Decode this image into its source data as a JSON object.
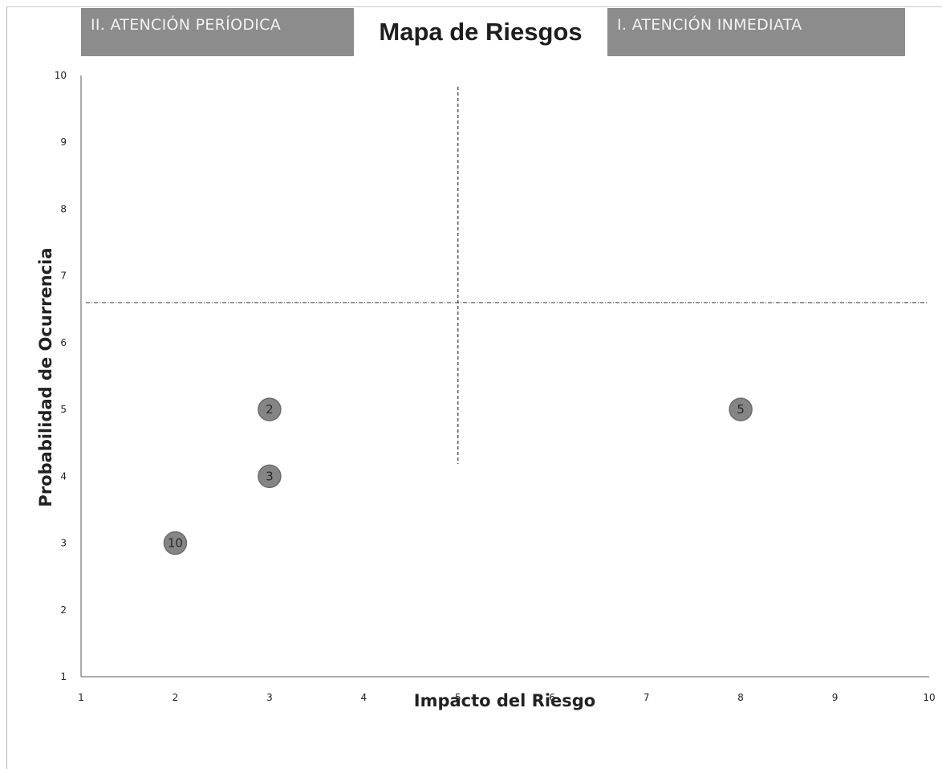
{
  "chart_data": {
    "type": "scatter",
    "title": "Mapa de Riesgos",
    "xlabel": "Impacto del Riesgo",
    "ylabel": "Probabilidad de Ocurrencia",
    "xlim": [
      1,
      10
    ],
    "ylim": [
      1,
      10
    ],
    "x_ticks": [
      1,
      2,
      3,
      4,
      5,
      6,
      7,
      8,
      9,
      10
    ],
    "y_ticks": [
      1,
      2,
      3,
      4,
      5,
      6,
      7,
      8,
      9,
      10
    ],
    "grid": false,
    "quadrant_labels": {
      "top_left": "II. ATENCIÓN PERÍODICA",
      "top_right": "I. ATENCIÓN INMEDIATA"
    },
    "divider_lines": {
      "x": 5,
      "y": 6.6
    },
    "points": [
      {
        "x": 3,
        "y": 5,
        "label": "2"
      },
      {
        "x": 3,
        "y": 4,
        "label": "3"
      },
      {
        "x": 2,
        "y": 3,
        "label": "10"
      },
      {
        "x": 8,
        "y": 5,
        "label": "5"
      }
    ],
    "marker_color": "#858585"
  }
}
